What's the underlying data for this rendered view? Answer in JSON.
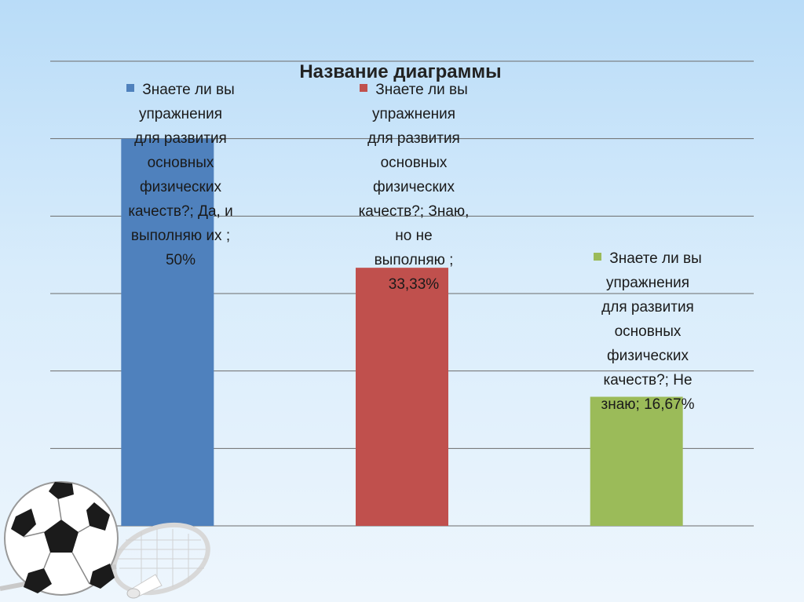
{
  "chart_data": {
    "type": "bar",
    "title": "Название диаграммы",
    "categories": [
      "Знаете ли вы упражнения для развития основных физических качеств?; Да, и выполняю их ;",
      "Знаете ли вы упражнения для развития основных физических качеств?; Знаю, но не выполняю ;",
      "Знаете ли вы упражнения для развития основных физических качеств?; Не знаю;"
    ],
    "values": [
      50,
      33.33,
      16.67
    ],
    "unit": "%",
    "ylim": [
      0,
      60
    ],
    "grid": true,
    "colors": [
      "#4f81bd",
      "#c0504d",
      "#9bbb59"
    ],
    "labels": [
      "Знаете ли вы\nупражнения\nдля развития\nосновных\nфизических\nкачеств?; Да, и\nвыполняю их ;\n50%",
      "Знаете ли вы\nупражнения\nдля развития\nосновных\nфизических\nкачеств?; Знаю,\nно не\nвыполняю ;\n33,33%",
      "Знаете ли вы\nупражнения\nдля развития\nосновных\nфизических\nкачеств?; Не\nзнаю; 16,67%"
    ]
  },
  "decor": {
    "ball_icon": "soccer-ball-icon",
    "racket_icon": "badminton-racket-icon",
    "shuttlecock_icon": "shuttlecock-icon"
  }
}
